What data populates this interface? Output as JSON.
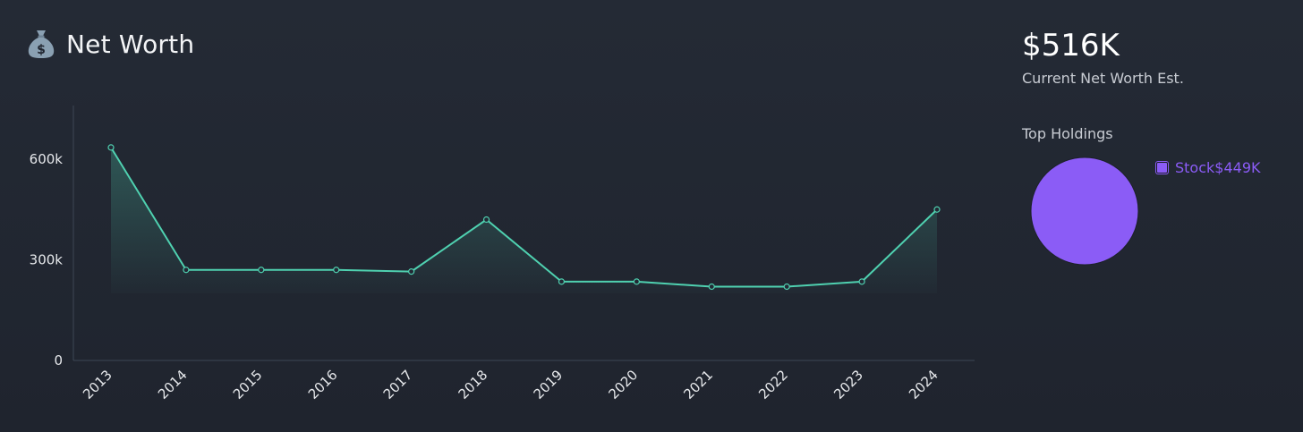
{
  "header": {
    "title": "Net Worth",
    "icon": "money-bag-icon"
  },
  "summary": {
    "value": "$516K",
    "caption": "Current Net Worth Est."
  },
  "holdings": {
    "title": "Top Holdings",
    "items": [
      {
        "label": "Stock",
        "value_label": "$449K",
        "value": 449000,
        "color": "#8b5cf6"
      }
    ]
  },
  "colors": {
    "line": "#4fd1b0",
    "pie": "#8b5cf6",
    "legend_text": "#8b5cf6"
  },
  "chart_data": {
    "type": "area",
    "x": [
      "2013",
      "2014",
      "2015",
      "2016",
      "2017",
      "2018",
      "2019",
      "2020",
      "2021",
      "2022",
      "2023",
      "2024"
    ],
    "series": [
      {
        "values": [
          635000,
          270000,
          270000,
          270000,
          265000,
          420000,
          235000,
          235000,
          220000,
          220000,
          235000,
          450000
        ]
      }
    ],
    "ylim": [
      0,
      760000
    ],
    "yticks": [
      0,
      300000,
      600000
    ],
    "ytick_labels": [
      "0",
      "300k",
      "600k"
    ],
    "title": "",
    "xlabel": "",
    "ylabel": "",
    "grid": false
  }
}
